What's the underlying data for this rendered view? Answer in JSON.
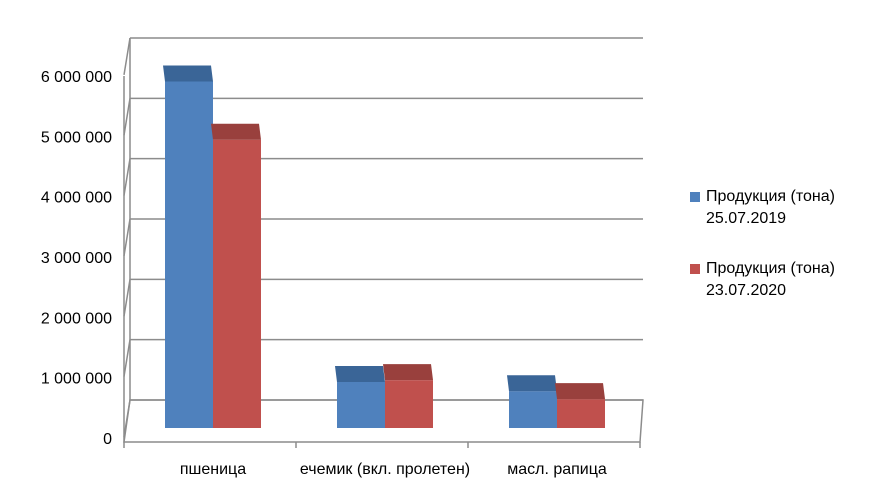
{
  "chart_data": {
    "type": "bar",
    "categories": [
      "пшеница",
      "ечемик (вкл. пролетен)",
      "масл. рапица"
    ],
    "series": [
      {
        "name": "Продукция (тона) 25.07.2019",
        "name_lines": [
          "Продукция (тона)",
          "25.07.2019"
        ],
        "values": [
          5650000,
          750000,
          600000
        ],
        "color": "#4F81BD",
        "top_color": "#3A6597"
      },
      {
        "name": "Продукция (тона) 23.07.2020",
        "name_lines": [
          "Продукция (тона)",
          "23.07.2020"
        ],
        "values": [
          4700000,
          780000,
          470000
        ],
        "color": "#C0504D",
        "top_color": "#99403D"
      }
    ],
    "y_ticks": [
      0,
      1000000,
      2000000,
      3000000,
      4000000,
      5000000,
      6000000
    ],
    "y_tick_labels": [
      "0",
      "1 000 000",
      "2 000 000",
      "3 000 000",
      "4 000 000",
      "5 000 000",
      "6 000 000"
    ],
    "ylim": [
      0,
      6000000
    ],
    "grid": true,
    "legend_position": "right",
    "style": "3d-clustered-column"
  }
}
